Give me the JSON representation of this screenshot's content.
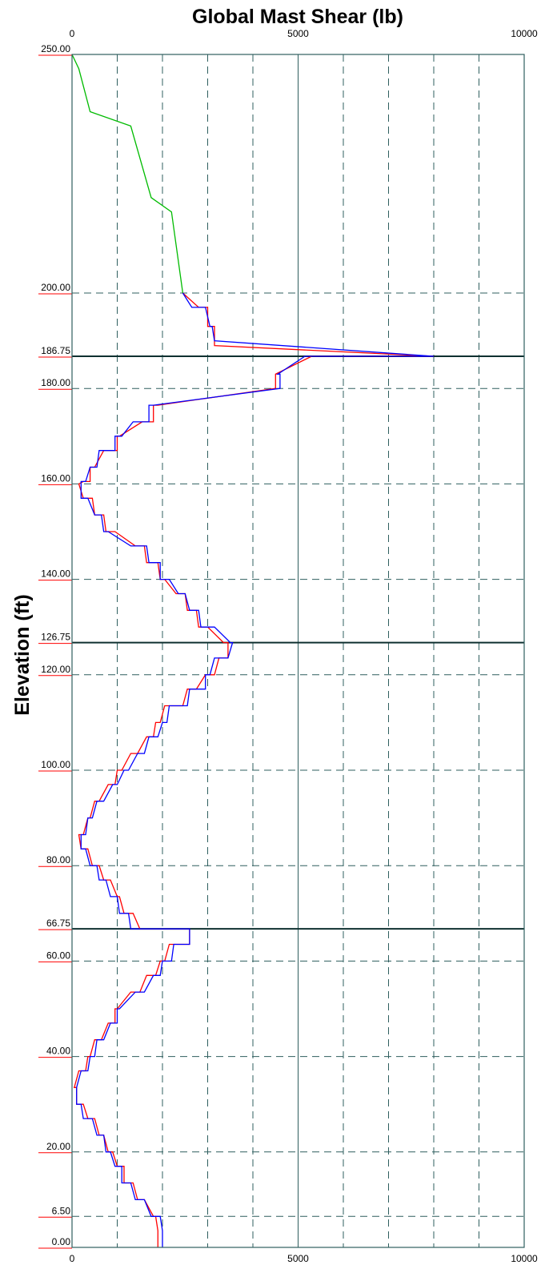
{
  "chart_data": {
    "type": "line",
    "title": "Global Mast Shear (lb)",
    "xlabel": "",
    "ylabel": "Elevation (ft)",
    "xlim": [
      0,
      10000
    ],
    "ylim": [
      0,
      250
    ],
    "x_ticks": [
      0,
      5000,
      10000
    ],
    "x_tick_labels": [
      "0",
      "5000",
      "10000"
    ],
    "x_gridlines": [
      1000,
      2000,
      3000,
      4000,
      5000,
      6000,
      7000,
      8000,
      9000
    ],
    "x_gridlines_solid": [
      5000
    ],
    "y_ticks": [
      {
        "value": 250,
        "label": "250.00",
        "highlight": false
      },
      {
        "value": 200,
        "label": "200.00",
        "highlight": false
      },
      {
        "value": 186.75,
        "label": "186.75",
        "highlight": true
      },
      {
        "value": 180,
        "label": "180.00",
        "highlight": false
      },
      {
        "value": 160,
        "label": "160.00",
        "highlight": false
      },
      {
        "value": 140,
        "label": "140.00",
        "highlight": false
      },
      {
        "value": 126.75,
        "label": "126.75",
        "highlight": true
      },
      {
        "value": 120,
        "label": "120.00",
        "highlight": false
      },
      {
        "value": 100,
        "label": "100.00",
        "highlight": false
      },
      {
        "value": 80,
        "label": "80.00",
        "highlight": false
      },
      {
        "value": 66.75,
        "label": "66.75",
        "highlight": true
      },
      {
        "value": 60,
        "label": "60.00",
        "highlight": false
      },
      {
        "value": 40,
        "label": "40.00",
        "highlight": false
      },
      {
        "value": 20,
        "label": "20.00",
        "highlight": false
      },
      {
        "value": 6.5,
        "label": "6.50",
        "highlight": false
      },
      {
        "value": 0,
        "label": "0.00",
        "highlight": false
      }
    ],
    "colors": {
      "grid": "#2f5f5f",
      "highlight_label": "#ff0000",
      "series_top": "#00bb00",
      "series_red": "#ff0000",
      "series_blue": "#0000ff"
    },
    "series": [
      {
        "color": "#00bb00",
        "points": [
          [
            0,
            250
          ],
          [
            150,
            247
          ],
          [
            400,
            238
          ],
          [
            1300,
            235
          ],
          [
            1750,
            220
          ],
          [
            2200,
            217
          ],
          [
            2450,
            200
          ]
        ]
      },
      {
        "color": "#ff0000",
        "points": [
          [
            2450,
            200
          ],
          [
            2800,
            197
          ],
          [
            3000,
            197
          ],
          [
            3000,
            193
          ],
          [
            3150,
            193
          ],
          [
            3150,
            189
          ],
          [
            8000,
            186.75
          ],
          [
            5300,
            186.75
          ],
          [
            4500,
            183
          ],
          [
            4500,
            180
          ],
          [
            1900,
            176.5
          ],
          [
            1800,
            176.5
          ],
          [
            1800,
            173
          ],
          [
            1550,
            173
          ],
          [
            1050,
            170
          ],
          [
            1000,
            170
          ],
          [
            1000,
            167
          ],
          [
            700,
            167
          ],
          [
            500,
            163.5
          ],
          [
            400,
            163.5
          ],
          [
            400,
            160.5
          ],
          [
            250,
            160.5
          ],
          [
            150,
            160
          ],
          [
            250,
            157
          ],
          [
            450,
            157
          ],
          [
            500,
            153.5
          ],
          [
            700,
            153.5
          ],
          [
            750,
            150
          ],
          [
            950,
            150
          ],
          [
            1400,
            147
          ],
          [
            1600,
            147
          ],
          [
            1650,
            143.5
          ],
          [
            1900,
            143.5
          ],
          [
            1950,
            140
          ],
          [
            2050,
            140
          ],
          [
            2300,
            137
          ],
          [
            2500,
            137
          ],
          [
            2550,
            133.5
          ],
          [
            2750,
            133.5
          ],
          [
            2800,
            130
          ],
          [
            3000,
            130
          ],
          [
            3350,
            126.75
          ],
          [
            3450,
            126.75
          ],
          [
            3450,
            123.5
          ],
          [
            3250,
            123.5
          ],
          [
            3150,
            120
          ],
          [
            2950,
            120
          ],
          [
            2750,
            117
          ],
          [
            2550,
            117
          ],
          [
            2450,
            113.5
          ],
          [
            2050,
            113.5
          ],
          [
            1950,
            110
          ],
          [
            1850,
            110
          ],
          [
            1800,
            107
          ],
          [
            1650,
            107
          ],
          [
            1450,
            103.5
          ],
          [
            1300,
            103.5
          ],
          [
            1100,
            100
          ],
          [
            1000,
            100
          ],
          [
            950,
            97
          ],
          [
            800,
            97
          ],
          [
            600,
            93.5
          ],
          [
            500,
            93.5
          ],
          [
            400,
            90
          ],
          [
            350,
            90
          ],
          [
            250,
            86.5
          ],
          [
            150,
            86.5
          ],
          [
            200,
            83.5
          ],
          [
            350,
            83.5
          ],
          [
            450,
            80
          ],
          [
            600,
            80
          ],
          [
            700,
            77
          ],
          [
            850,
            77
          ],
          [
            1000,
            73.5
          ],
          [
            1050,
            73.5
          ],
          [
            1150,
            70
          ],
          [
            1350,
            70
          ],
          [
            1500,
            66.75
          ],
          [
            2600,
            66.75
          ],
          [
            2600,
            63.5
          ],
          [
            2150,
            63.5
          ],
          [
            2050,
            60
          ],
          [
            1950,
            60
          ],
          [
            1850,
            57
          ],
          [
            1650,
            57
          ],
          [
            1500,
            53.5
          ],
          [
            1300,
            53.5
          ],
          [
            1000,
            50
          ],
          [
            950,
            50
          ],
          [
            950,
            47
          ],
          [
            800,
            47
          ],
          [
            650,
            43.5
          ],
          [
            500,
            43.5
          ],
          [
            400,
            40
          ],
          [
            350,
            40
          ],
          [
            300,
            37
          ],
          [
            150,
            37
          ],
          [
            50,
            33.5
          ],
          [
            100,
            33.5
          ],
          [
            100,
            30
          ],
          [
            250,
            30
          ],
          [
            350,
            27
          ],
          [
            500,
            27
          ],
          [
            600,
            23.5
          ],
          [
            700,
            23.5
          ],
          [
            800,
            20
          ],
          [
            900,
            20
          ],
          [
            1000,
            17
          ],
          [
            1150,
            17
          ],
          [
            1150,
            13.5
          ],
          [
            1350,
            13.5
          ],
          [
            1450,
            10
          ],
          [
            1600,
            10
          ],
          [
            1800,
            6.5
          ],
          [
            1850,
            6.5
          ],
          [
            1900,
            3.5
          ],
          [
            1900,
            0
          ]
        ]
      },
      {
        "color": "#0000ff",
        "points": [
          [
            2450,
            200
          ],
          [
            2650,
            197
          ],
          [
            2950,
            197
          ],
          [
            3050,
            193
          ],
          [
            3100,
            193
          ],
          [
            3150,
            190
          ],
          [
            8000,
            186.75
          ],
          [
            5150,
            186.75
          ],
          [
            4550,
            183
          ],
          [
            4600,
            183
          ],
          [
            4600,
            180
          ],
          [
            1800,
            176.5
          ],
          [
            1700,
            176.5
          ],
          [
            1700,
            173
          ],
          [
            1350,
            173
          ],
          [
            1100,
            170
          ],
          [
            950,
            170
          ],
          [
            950,
            167
          ],
          [
            600,
            167
          ],
          [
            550,
            163.5
          ],
          [
            400,
            163.5
          ],
          [
            300,
            160.5
          ],
          [
            200,
            160.5
          ],
          [
            200,
            157
          ],
          [
            350,
            157
          ],
          [
            500,
            153.5
          ],
          [
            650,
            153.5
          ],
          [
            700,
            150
          ],
          [
            800,
            150
          ],
          [
            1300,
            147
          ],
          [
            1650,
            147
          ],
          [
            1700,
            143.5
          ],
          [
            1950,
            143.5
          ],
          [
            1950,
            140
          ],
          [
            2150,
            140
          ],
          [
            2350,
            137
          ],
          [
            2500,
            137
          ],
          [
            2600,
            133.5
          ],
          [
            2800,
            133.5
          ],
          [
            2850,
            130
          ],
          [
            3150,
            130
          ],
          [
            3500,
            126.75
          ],
          [
            3550,
            126.75
          ],
          [
            3450,
            123.5
          ],
          [
            3150,
            123.5
          ],
          [
            3050,
            120
          ],
          [
            2950,
            120
          ],
          [
            2950,
            117
          ],
          [
            2600,
            117
          ],
          [
            2550,
            113.5
          ],
          [
            2150,
            113.5
          ],
          [
            2100,
            110
          ],
          [
            2000,
            110
          ],
          [
            1900,
            107
          ],
          [
            1700,
            107
          ],
          [
            1600,
            103.5
          ],
          [
            1450,
            103.5
          ],
          [
            1250,
            100
          ],
          [
            1150,
            100
          ],
          [
            1000,
            97
          ],
          [
            900,
            97
          ],
          [
            700,
            93.5
          ],
          [
            550,
            93.5
          ],
          [
            450,
            90
          ],
          [
            350,
            90
          ],
          [
            300,
            86.5
          ],
          [
            200,
            86.5
          ],
          [
            200,
            83.5
          ],
          [
            300,
            83.5
          ],
          [
            400,
            80
          ],
          [
            550,
            80
          ],
          [
            600,
            77
          ],
          [
            750,
            77
          ],
          [
            850,
            73.5
          ],
          [
            1000,
            73.5
          ],
          [
            1050,
            70
          ],
          [
            1250,
            70
          ],
          [
            1300,
            66.75
          ],
          [
            2600,
            66.75
          ],
          [
            2600,
            63.5
          ],
          [
            2250,
            63.5
          ],
          [
            2200,
            60
          ],
          [
            2000,
            60
          ],
          [
            1950,
            57
          ],
          [
            1800,
            57
          ],
          [
            1600,
            53.5
          ],
          [
            1400,
            53.5
          ],
          [
            1050,
            50
          ],
          [
            1000,
            50
          ],
          [
            1000,
            47
          ],
          [
            850,
            47
          ],
          [
            700,
            43.5
          ],
          [
            550,
            43.5
          ],
          [
            500,
            40
          ],
          [
            400,
            40
          ],
          [
            350,
            37
          ],
          [
            200,
            37
          ],
          [
            100,
            33.5
          ],
          [
            100,
            30
          ],
          [
            200,
            30
          ],
          [
            250,
            27
          ],
          [
            450,
            27
          ],
          [
            550,
            23.5
          ],
          [
            700,
            23.5
          ],
          [
            750,
            20
          ],
          [
            850,
            20
          ],
          [
            950,
            17
          ],
          [
            1100,
            17
          ],
          [
            1100,
            13.5
          ],
          [
            1300,
            13.5
          ],
          [
            1400,
            10
          ],
          [
            1600,
            10
          ],
          [
            1750,
            6.5
          ],
          [
            1950,
            6.5
          ],
          [
            2000,
            3.5
          ],
          [
            2000,
            0
          ]
        ]
      }
    ]
  }
}
